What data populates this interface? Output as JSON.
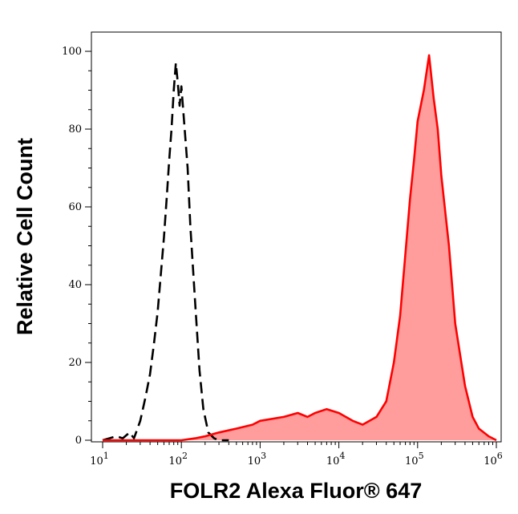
{
  "chart_data": {
    "type": "area",
    "title": "",
    "xlabel": "FOLR2 Alexa Fluor® 647",
    "ylabel": "Relative Cell Count",
    "x_scale": "log",
    "xlim": [
      10,
      1000000
    ],
    "ylim": [
      0,
      105
    ],
    "grid": false,
    "legend": "none",
    "x_ticks": [
      {
        "base": "10",
        "exp": "1",
        "value": 10
      },
      {
        "base": "10",
        "exp": "2",
        "value": 100
      },
      {
        "base": "10",
        "exp": "3",
        "value": 1000
      },
      {
        "base": "10",
        "exp": "4",
        "value": 10000
      },
      {
        "base": "10",
        "exp": "5",
        "value": 100000
      },
      {
        "base": "10",
        "exp": "6",
        "value": 1000000
      }
    ],
    "y_ticks": [
      "0",
      "20",
      "40",
      "60",
      "80",
      "100"
    ],
    "series": [
      {
        "style": "dashed",
        "color": "#000000",
        "fill": "none",
        "x": [
          10,
          15,
          18,
          22,
          25,
          30,
          35,
          40,
          45,
          50,
          55,
          60,
          65,
          70,
          75,
          80,
          85,
          90,
          95,
          100,
          110,
          120,
          130,
          150,
          170,
          190,
          220,
          260,
          300,
          400
        ],
        "y": [
          0,
          1,
          0.5,
          2,
          0.5,
          5,
          11,
          17,
          25,
          33,
          43,
          52,
          62,
          72,
          80,
          90,
          97,
          92,
          86,
          91,
          80,
          70,
          55,
          35,
          18,
          8,
          2,
          0.5,
          0,
          0
        ]
      },
      {
        "style": "solid",
        "color": "#ff0000",
        "fill": "#ff9c9c",
        "x": [
          10,
          100,
          150,
          200,
          300,
          500,
          800,
          1000,
          2000,
          3000,
          4000,
          5000,
          7000,
          10000,
          15000,
          20000,
          30000,
          40000,
          50000,
          60000,
          70000,
          80000,
          90000,
          100000,
          120000,
          140000,
          160000,
          180000,
          200000,
          250000,
          300000,
          400000,
          500000,
          600000,
          800000,
          1000000
        ],
        "y": [
          0,
          0,
          0.5,
          1,
          2,
          3,
          4,
          5,
          6,
          7,
          6,
          7,
          8,
          7,
          5,
          4,
          6,
          10,
          20,
          32,
          48,
          62,
          72,
          82,
          90,
          99,
          88,
          80,
          68,
          50,
          30,
          14,
          6,
          3,
          1,
          0
        ]
      }
    ]
  }
}
